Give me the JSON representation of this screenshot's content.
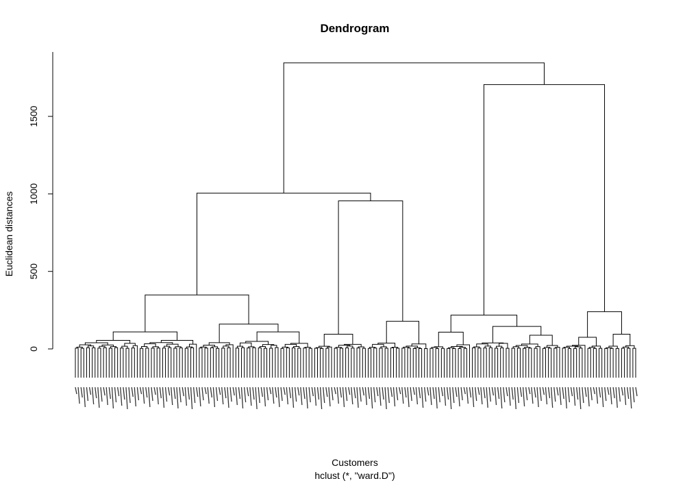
{
  "chart_data": {
    "type": "dendrogram",
    "title": "Dendrogram",
    "xlabel": "Customers",
    "sub": "hclust (*, \"ward.D\")",
    "ylabel": "Euclidean distances",
    "ylim": [
      0,
      1850
    ],
    "yticks": [
      0,
      500,
      1000,
      1500
    ],
    "grid": false,
    "leaf_count": 200,
    "merges": [
      {
        "id": "root",
        "height": 1845,
        "left": "A",
        "right": "B"
      },
      {
        "id": "A",
        "height": 1005,
        "left": "A1",
        "right": "A2"
      },
      {
        "id": "A1",
        "height": 348,
        "left": "A1a",
        "right": "A1b"
      },
      {
        "id": "A1a",
        "height": 110,
        "left": "c1",
        "right": "c2"
      },
      {
        "id": "A1b",
        "height": 160,
        "left": "c3",
        "right": "A1b2"
      },
      {
        "id": "A1b2",
        "height": 110,
        "left": "c4",
        "right": "c5"
      },
      {
        "id": "A2",
        "height": 955,
        "left": "c6",
        "right": "c7"
      },
      {
        "id": "c6",
        "height": 95,
        "left": "c6a",
        "right": "c6b"
      },
      {
        "id": "c7",
        "height": 178,
        "left": "c7a",
        "right": "c7b"
      },
      {
        "id": "B",
        "height": 1705,
        "left": "B1",
        "right": "B2"
      },
      {
        "id": "B1",
        "height": 218,
        "left": "c8",
        "right": "B1b"
      },
      {
        "id": "c8",
        "height": 108,
        "left": "c8a",
        "right": "c8b"
      },
      {
        "id": "B1b",
        "height": 145,
        "left": "c9",
        "right": "c10"
      },
      {
        "id": "c10",
        "height": 88,
        "left": "c10a",
        "right": "c10b"
      },
      {
        "id": "B2",
        "height": 240,
        "left": "c11",
        "right": "c12"
      },
      {
        "id": "c11",
        "height": 75,
        "left": "c11a",
        "right": "c11b"
      },
      {
        "id": "c12",
        "height": 95,
        "left": "c12a",
        "right": "c12b"
      }
    ]
  }
}
